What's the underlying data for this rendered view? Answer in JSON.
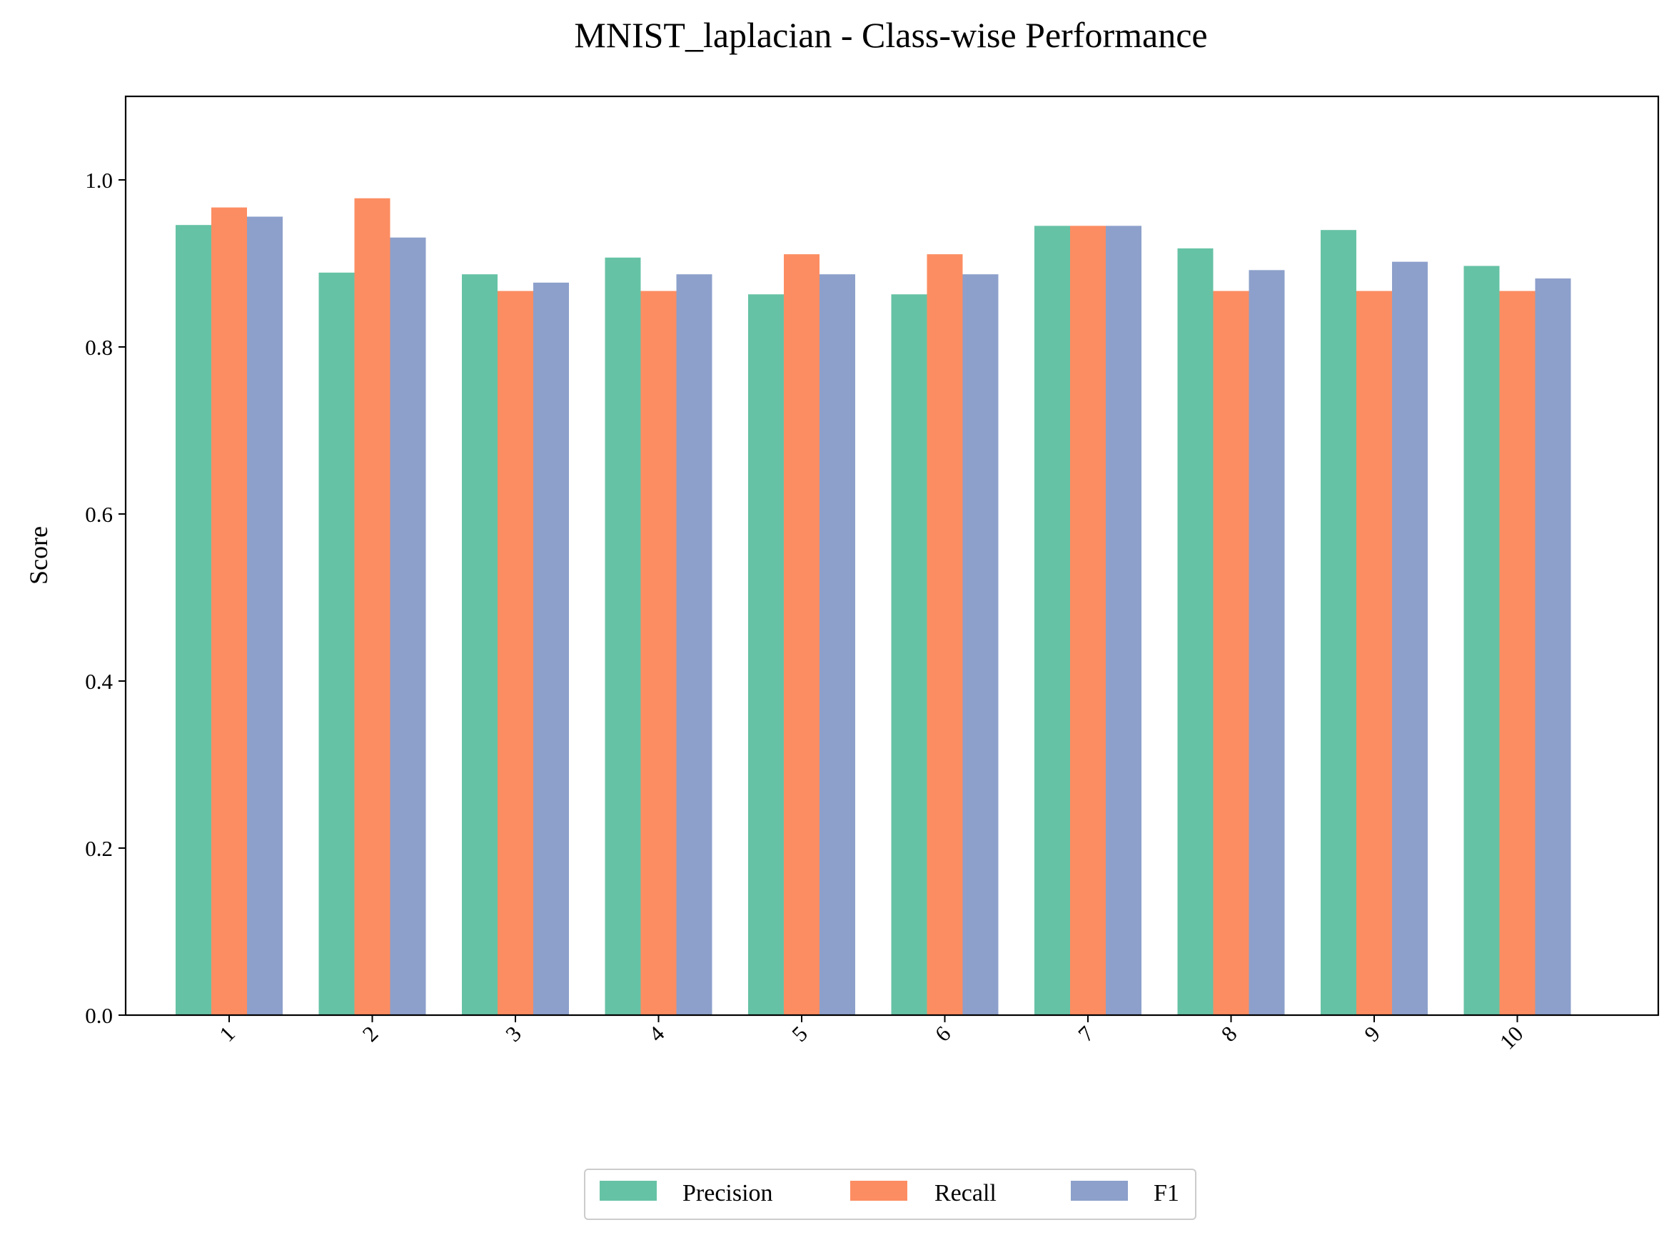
{
  "chart_data": {
    "type": "bar",
    "title": "MNIST_laplacian - Class-wise Performance",
    "xlabel": "",
    "ylabel": "Score",
    "ylim": [
      0,
      1.1
    ],
    "yticks": [
      "0.0",
      "0.2",
      "0.4",
      "0.6",
      "0.8",
      "1.0"
    ],
    "categories": [
      "1",
      "2",
      "3",
      "4",
      "5",
      "6",
      "7",
      "8",
      "9",
      "10"
    ],
    "series": [
      {
        "name": "Precision",
        "color": "#66c2a5",
        "values": [
          0.946,
          0.889,
          0.887,
          0.907,
          0.863,
          0.863,
          0.945,
          0.918,
          0.94,
          0.897
        ]
      },
      {
        "name": "Recall",
        "color": "#fc8d62",
        "values": [
          0.967,
          0.978,
          0.867,
          0.867,
          0.911,
          0.911,
          0.945,
          0.867,
          0.867,
          0.867
        ]
      },
      {
        "name": "F1",
        "color": "#8da0cb",
        "values": [
          0.956,
          0.931,
          0.877,
          0.887,
          0.887,
          0.887,
          0.945,
          0.892,
          0.902,
          0.882
        ]
      }
    ],
    "grid": false,
    "legend_position": "bottom-center"
  }
}
